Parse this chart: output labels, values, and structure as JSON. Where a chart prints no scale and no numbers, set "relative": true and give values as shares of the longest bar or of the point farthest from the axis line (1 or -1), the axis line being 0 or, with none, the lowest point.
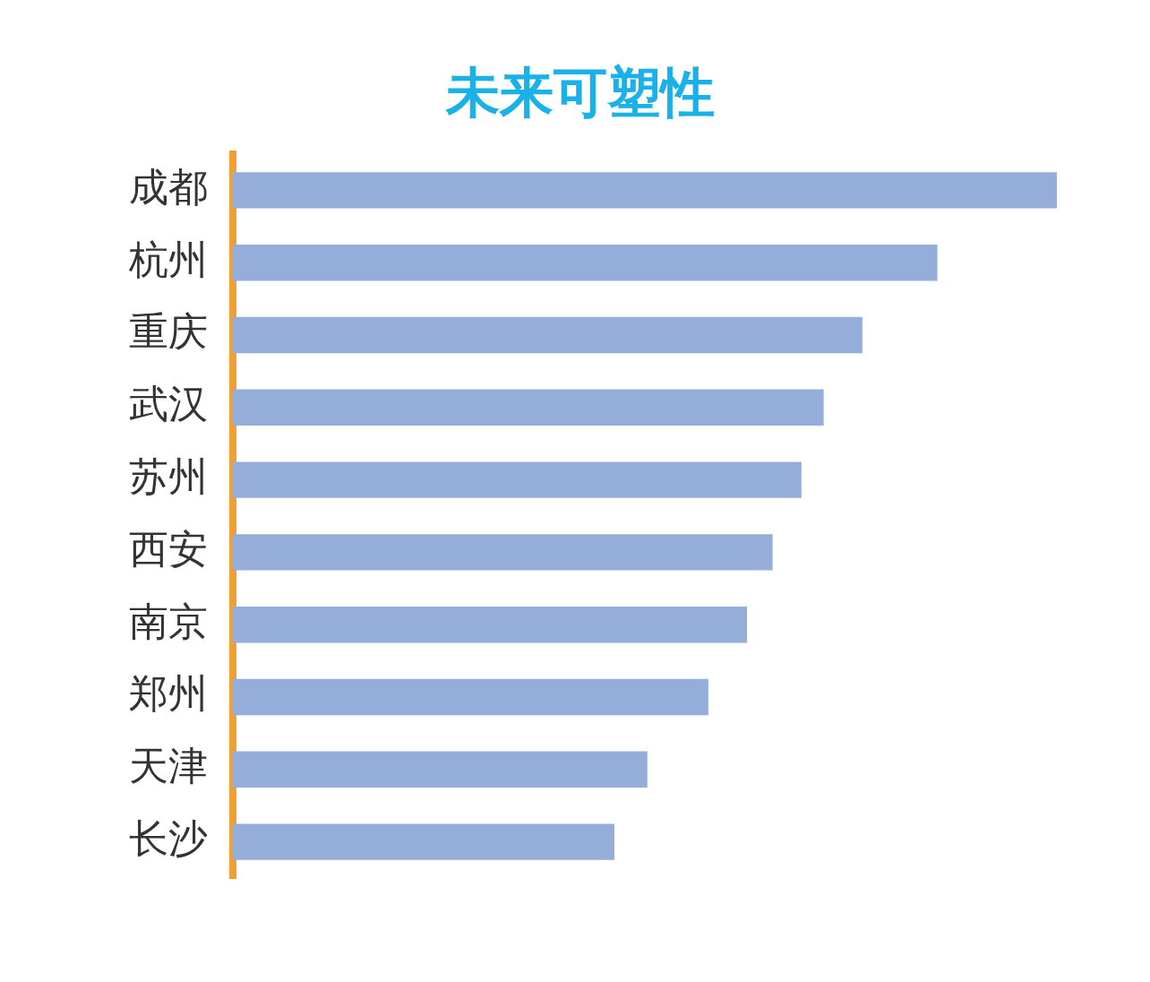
{
  "chart_data": {
    "type": "bar",
    "title": "未来可塑性",
    "orientation": "horizontal",
    "relative": true,
    "categories": [
      "成都",
      "杭州",
      "重庆",
      "武汉",
      "苏州",
      "西安",
      "南京",
      "郑州",
      "天津",
      "长沙"
    ],
    "values": [
      1,
      0.855,
      0.764,
      0.717,
      0.69,
      0.655,
      0.624,
      0.577,
      0.503,
      0.463
    ],
    "color": "#94aed9",
    "legend": false
  }
}
